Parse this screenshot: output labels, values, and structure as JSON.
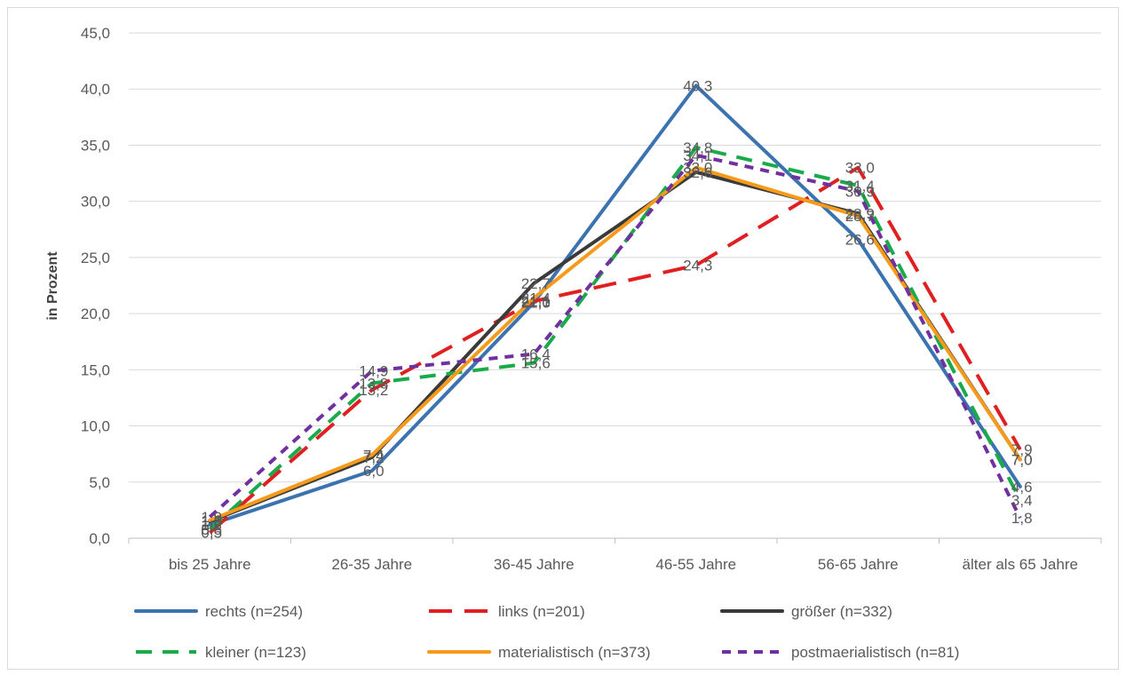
{
  "chart_data": {
    "type": "line",
    "title": "",
    "xlabel": "",
    "ylabel": "in Prozent",
    "ylim": [
      0,
      45
    ],
    "yticks": [
      "0,0",
      "5,0",
      "10,0",
      "15,0",
      "20,0",
      "25,0",
      "30,0",
      "35,0",
      "40,0",
      "45,0"
    ],
    "categories": [
      "bis 25 Jahre",
      "26-35 Jahre",
      "36-45 Jahre",
      "46-55 Jahre",
      "56-65 Jahre",
      "älter als 65 Jahre"
    ],
    "grid": true,
    "legend_position": "bottom",
    "series": [
      {
        "name": "rechts (n=254)",
        "color": "#3b73b1",
        "dash": "solid",
        "values": [
          1.2,
          6.0,
          21.0,
          40.3,
          26.6,
          4.6
        ],
        "labels": [
          "1,2",
          "6,0",
          "21,0",
          "40,3",
          "26,6",
          "4,6"
        ]
      },
      {
        "name": "links (n=201)",
        "color": "#e02020",
        "dash": "long",
        "values": [
          0.5,
          13.2,
          21.1,
          24.3,
          33.0,
          7.9
        ],
        "labels": [
          "0,5",
          "13,2",
          "21,1",
          "24,3",
          "33,0",
          "7,9"
        ]
      },
      {
        "name": "größer (n=332)",
        "color": "#3a3a3a",
        "dash": "solid",
        "values": [
          1.5,
          7.2,
          22.7,
          32.6,
          28.9,
          7.0
        ],
        "labels": [
          "1,5",
          "7,2",
          "22,7",
          "32,6",
          "28,9",
          "7,0"
        ]
      },
      {
        "name": "kleiner (n=123)",
        "color": "#1aaa4a",
        "dash": "medium",
        "values": [
          0.8,
          13.8,
          15.6,
          34.8,
          31.4,
          3.4
        ],
        "labels": [
          "0,8",
          "13,8",
          "15,6",
          "34,8",
          "31,4",
          "3,4"
        ]
      },
      {
        "name": "materialistisch (n=373)",
        "color": "#f59a1b",
        "dash": "solid",
        "values": [
          1.6,
          7.4,
          21.4,
          33.0,
          28.7,
          7.0
        ],
        "labels": [
          "1,6",
          "7,4",
          "21,4",
          "33,0",
          "28,7",
          "7,0"
        ]
      },
      {
        "name": "postmaerialistisch (n=81)",
        "color": "#7030a0",
        "dash": "short",
        "values": [
          1.9,
          14.9,
          16.4,
          34.1,
          30.9,
          1.8
        ],
        "labels": [
          "1,9",
          "14,9",
          "16,4",
          "34,1",
          "30,9",
          "1,8"
        ]
      }
    ]
  }
}
